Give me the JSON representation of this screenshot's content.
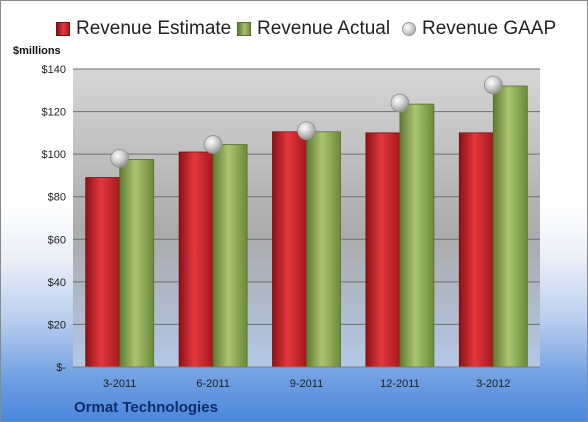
{
  "chart_data": {
    "type": "bar",
    "categories": [
      "3-2011",
      "6-2011",
      "9-2011",
      "12-2011",
      "3-2012"
    ],
    "series": [
      {
        "name": "Revenue Estimate",
        "type": "bar",
        "color": "#c8242a",
        "values": [
          89,
          101,
          110.5,
          110,
          110
        ]
      },
      {
        "name": "Revenue Actual",
        "type": "bar",
        "color": "#8aa353",
        "values": [
          97.5,
          104.5,
          110.5,
          123.5,
          132
        ]
      },
      {
        "name": "Revenue GAAP",
        "type": "marker",
        "color": "#b8b8b8",
        "values": [
          98,
          104.5,
          111,
          124,
          132.5
        ]
      }
    ],
    "ylabel": "$millions",
    "ylim": [
      0,
      140
    ],
    "yticks": [
      0,
      20,
      40,
      60,
      80,
      100,
      120,
      140
    ],
    "ytick_labels": [
      "$-",
      "$20",
      "$40",
      "$60",
      "$80",
      "$100",
      "$120",
      "$140"
    ],
    "grid": true,
    "legend_position": "top"
  },
  "footer": {
    "company": "Ormat Technologies"
  }
}
